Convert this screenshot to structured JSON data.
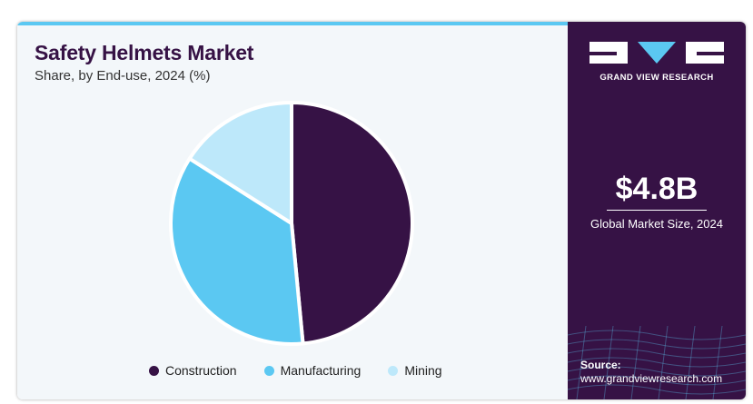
{
  "header": {
    "title": "Safety Helmets Market",
    "subtitle": "Share, by End-use, 2024 (%)"
  },
  "chart_data": {
    "type": "pie",
    "title": "Safety Helmets Market",
    "subtitle": "Share, by End-use, 2024 (%)",
    "categories": [
      "Construction",
      "Manufacturing",
      "Mining"
    ],
    "values": [
      48.5,
      35.5,
      16.0
    ],
    "colors": [
      "#361245",
      "#5bc8f2",
      "#bde8fa"
    ],
    "legend_position": "bottom",
    "data_labels": false
  },
  "brand": {
    "name": "GRAND VIEW RESEARCH",
    "panel_color": "#361245",
    "accent_color": "#5bc8f2"
  },
  "summary": {
    "value": "$4.8B",
    "caption": "Global Market Size, 2024"
  },
  "source": {
    "label": "Source:",
    "url": "www.grandviewresearch.com"
  }
}
